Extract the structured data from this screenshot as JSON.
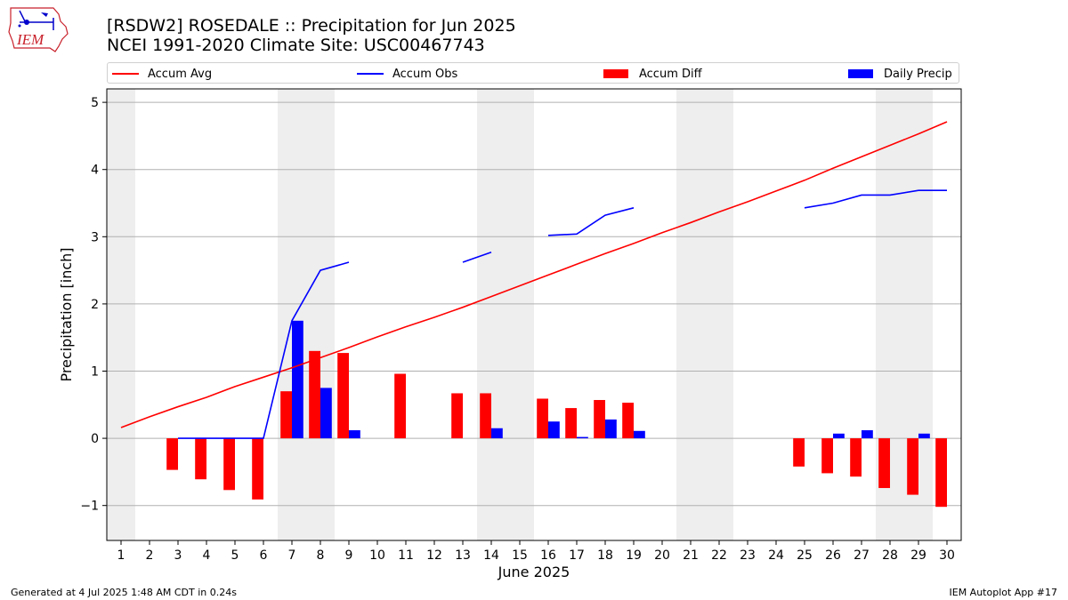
{
  "header": {
    "title_line1": "[RSDW2] ROSEDALE :: Precipitation for Jun 2025",
    "title_line2": "NCEI 1991-2020 Climate Site: USC00467743"
  },
  "logo": {
    "text": "IEM",
    "color": "#c8202a",
    "icon_color": "#0000cc"
  },
  "footer": {
    "generated": "Generated at 4 Jul 2025 1:48 AM CDT in 0.24s",
    "app": "IEM Autoplot App #17"
  },
  "chart_data": {
    "type": "bar",
    "xlabel": "June 2025",
    "ylabel": "Precipitation [inch]",
    "xlim": [
      0.5,
      30.5
    ],
    "ylim": [
      -1.52,
      5.2
    ],
    "xticks": [
      "1",
      "2",
      "3",
      "4",
      "5",
      "6",
      "7",
      "8",
      "9",
      "10",
      "11",
      "12",
      "13",
      "14",
      "15",
      "16",
      "17",
      "18",
      "19",
      "20",
      "21",
      "22",
      "23",
      "24",
      "25",
      "26",
      "27",
      "28",
      "29",
      "30"
    ],
    "yticks": [
      {
        "value": -1,
        "label": "−1"
      },
      {
        "value": 0,
        "label": "0"
      },
      {
        "value": 1,
        "label": "1"
      },
      {
        "value": 2,
        "label": "2"
      },
      {
        "value": 3,
        "label": "3"
      },
      {
        "value": 4,
        "label": "4"
      },
      {
        "value": 5,
        "label": "5"
      }
    ],
    "grid": "horizontal",
    "weekend_shading": [
      [
        0.5,
        1.5
      ],
      [
        6.5,
        8.5
      ],
      [
        13.5,
        15.5
      ],
      [
        20.5,
        22.5
      ],
      [
        27.5,
        29.5
      ]
    ],
    "legend": {
      "placement": "top",
      "entries": [
        {
          "label": "Accum Avg",
          "kind": "line",
          "color": "#ff0000"
        },
        {
          "label": "Accum Obs",
          "kind": "line",
          "color": "#0000ff"
        },
        {
          "label": "Accum Diff",
          "kind": "bar",
          "color": "#ff0000"
        },
        {
          "label": "Daily Precip",
          "kind": "bar",
          "color": "#0000ff"
        }
      ]
    },
    "series": [
      {
        "name": "Accum Avg",
        "type": "line",
        "color": "#ff0000",
        "x": [
          1,
          2,
          3,
          4,
          5,
          6,
          7,
          8,
          9,
          10,
          11,
          12,
          13,
          14,
          15,
          16,
          17,
          18,
          19,
          20,
          21,
          22,
          23,
          24,
          25,
          26,
          27,
          28,
          29,
          30
        ],
        "values": [
          0.16,
          0.32,
          0.47,
          0.61,
          0.77,
          0.91,
          1.05,
          1.2,
          1.35,
          1.51,
          1.66,
          1.8,
          1.95,
          2.11,
          2.27,
          2.43,
          2.59,
          2.75,
          2.9,
          3.06,
          3.21,
          3.37,
          3.52,
          3.68,
          3.84,
          4.02,
          4.19,
          4.36,
          4.53,
          4.71
        ]
      },
      {
        "name": "Accum Obs",
        "type": "line",
        "color": "#0000ff",
        "x": [
          1,
          2,
          3,
          4,
          5,
          6,
          7,
          8,
          9,
          10,
          11,
          12,
          13,
          14,
          15,
          16,
          17,
          18,
          19,
          20,
          21,
          22,
          23,
          24,
          25,
          26,
          27,
          28,
          29,
          30
        ],
        "values": [
          null,
          null,
          0,
          0,
          0,
          0,
          1.75,
          2.5,
          2.62,
          null,
          null,
          null,
          2.62,
          2.77,
          null,
          3.02,
          3.04,
          3.32,
          3.43,
          null,
          null,
          null,
          null,
          null,
          3.43,
          3.5,
          3.62,
          3.62,
          3.69,
          3.69
        ]
      },
      {
        "name": "Accum Diff",
        "type": "bar",
        "color": "#ff0000",
        "x": [
          3,
          4,
          5,
          6,
          7,
          8,
          9,
          11,
          13,
          14,
          16,
          17,
          18,
          19,
          25,
          26,
          27,
          28,
          29,
          30
        ],
        "values": [
          -0.47,
          -0.61,
          -0.77,
          -0.91,
          0.7,
          1.3,
          1.27,
          0.96,
          0.67,
          0.67,
          0.59,
          0.45,
          0.57,
          0.53,
          -0.42,
          -0.52,
          -0.57,
          -0.74,
          -0.84,
          -1.02
        ]
      },
      {
        "name": "Daily Precip",
        "type": "bar",
        "color": "#0000ff",
        "x": [
          7,
          8,
          9,
          14,
          16,
          17,
          18,
          19,
          26,
          27,
          29
        ],
        "values": [
          1.75,
          0.75,
          0.12,
          0.15,
          0.25,
          0.02,
          0.28,
          0.11,
          0.07,
          0.12,
          0.07
        ]
      }
    ]
  }
}
